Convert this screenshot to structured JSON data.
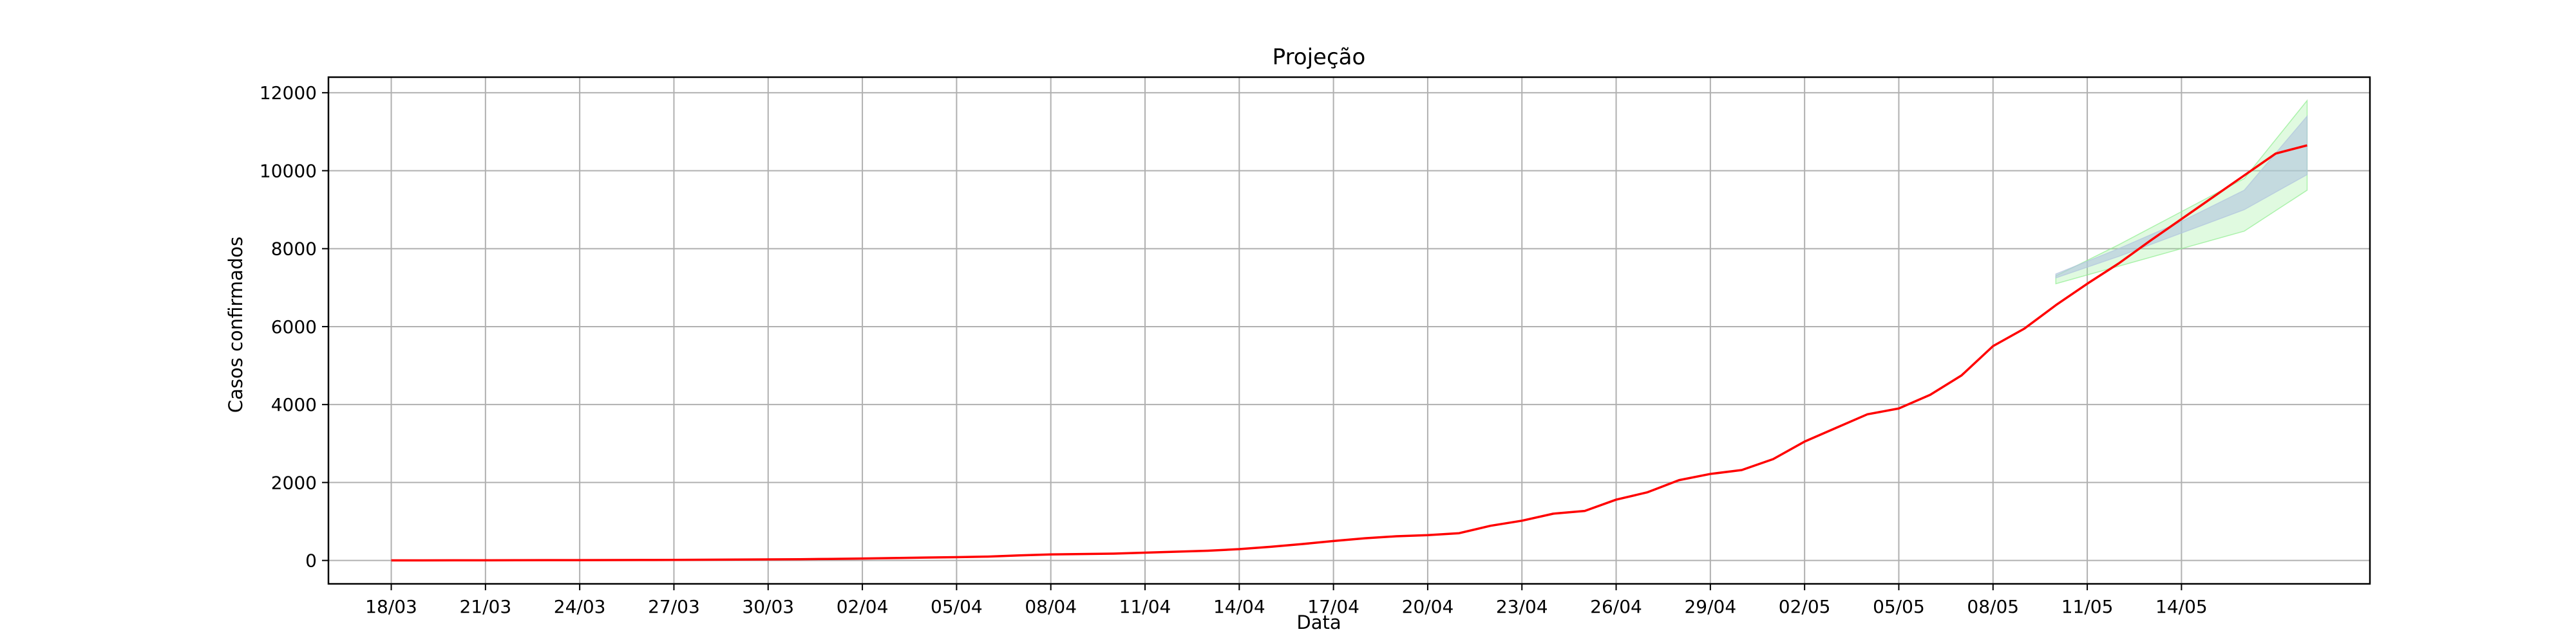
{
  "chart_data": {
    "type": "line",
    "title": "Projeção",
    "xlabel": "Data",
    "ylabel": "Casos confirmados",
    "ylim": [
      -600,
      12400
    ],
    "yticks": [
      0,
      2000,
      4000,
      6000,
      8000,
      10000,
      12000
    ],
    "xlim": [
      "2020-03-16",
      "2020-05-20"
    ],
    "xtick_labels": [
      "18/03",
      "21/03",
      "24/03",
      "27/03",
      "30/03",
      "02/04",
      "05/04",
      "08/04",
      "11/04",
      "14/04",
      "17/04",
      "20/04",
      "23/04",
      "26/04",
      "29/04",
      "02/05",
      "05/05",
      "08/05",
      "11/05",
      "14/05"
    ],
    "xtick_dates": [
      "2020-03-18",
      "2020-03-21",
      "2020-03-24",
      "2020-03-27",
      "2020-03-30",
      "2020-04-02",
      "2020-04-05",
      "2020-04-08",
      "2020-04-11",
      "2020-04-14",
      "2020-04-17",
      "2020-04-20",
      "2020-04-23",
      "2020-04-26",
      "2020-04-29",
      "2020-05-02",
      "2020-05-05",
      "2020-05-08",
      "2020-05-11",
      "2020-05-14"
    ],
    "grid": true,
    "colors": {
      "line": "#ff0000",
      "inner_band": "#b0c4de",
      "outer_band": "#90ee90",
      "grid": "#b0b0b0",
      "axes": "#000000"
    },
    "series": [
      {
        "x": [
          "2020-03-18",
          "2020-03-19",
          "2020-03-20",
          "2020-03-21",
          "2020-03-22",
          "2020-03-23",
          "2020-03-24",
          "2020-03-25",
          "2020-03-26",
          "2020-03-27",
          "2020-03-28",
          "2020-03-29",
          "2020-03-30",
          "2020-03-31",
          "2020-04-01",
          "2020-04-02",
          "2020-04-03",
          "2020-04-04",
          "2020-04-05",
          "2020-04-06",
          "2020-04-07",
          "2020-04-08",
          "2020-04-09",
          "2020-04-10",
          "2020-04-11",
          "2020-04-12",
          "2020-04-13",
          "2020-04-14",
          "2020-04-15",
          "2020-04-16",
          "2020-04-17",
          "2020-04-18",
          "2020-04-19",
          "2020-04-20",
          "2020-04-21",
          "2020-04-22",
          "2020-04-23",
          "2020-04-24",
          "2020-04-25",
          "2020-04-26",
          "2020-04-27",
          "2020-04-28",
          "2020-04-29",
          "2020-04-30",
          "2020-05-01",
          "2020-05-02",
          "2020-05-03",
          "2020-05-04",
          "2020-05-05",
          "2020-05-06",
          "2020-05-07",
          "2020-05-08",
          "2020-05-09",
          "2020-05-10",
          "2020-05-11",
          "2020-05-12",
          "2020-05-13",
          "2020-05-14",
          "2020-05-15",
          "2020-05-16",
          "2020-05-17",
          "2020-05-18"
        ],
        "y": [
          2,
          3,
          4,
          5,
          6,
          8,
          9,
          10,
          12,
          15,
          18,
          22,
          26,
          32,
          40,
          50,
          62,
          75,
          85,
          100,
          130,
          155,
          165,
          175,
          200,
          225,
          250,
          290,
          350,
          420,
          500,
          570,
          620,
          650,
          700,
          890,
          1020,
          1200,
          1270,
          1560,
          1750,
          2060,
          2220,
          2320,
          2600,
          3050,
          3400,
          3750,
          3900,
          4250,
          4750,
          5500,
          5950,
          6550,
          7100,
          7620,
          8200,
          8760,
          9320,
          9880,
          10440,
          10650
        ]
      }
    ],
    "bands": [
      {
        "x": [
          "2020-05-10",
          "2020-05-12",
          "2020-05-14",
          "2020-05-16",
          "2020-05-18"
        ],
        "lower": [
          7100,
          7550,
          8000,
          8450,
          9500
        ],
        "upper": [
          7300,
          8100,
          8950,
          9800,
          11800
        ]
      },
      {
        "x": [
          "2020-05-10",
          "2020-05-12",
          "2020-05-14",
          "2020-05-16",
          "2020-05-18"
        ],
        "lower": [
          7250,
          7800,
          8400,
          9000,
          9900
        ],
        "upper": [
          7350,
          8000,
          8700,
          9500,
          11400
        ]
      }
    ]
  }
}
